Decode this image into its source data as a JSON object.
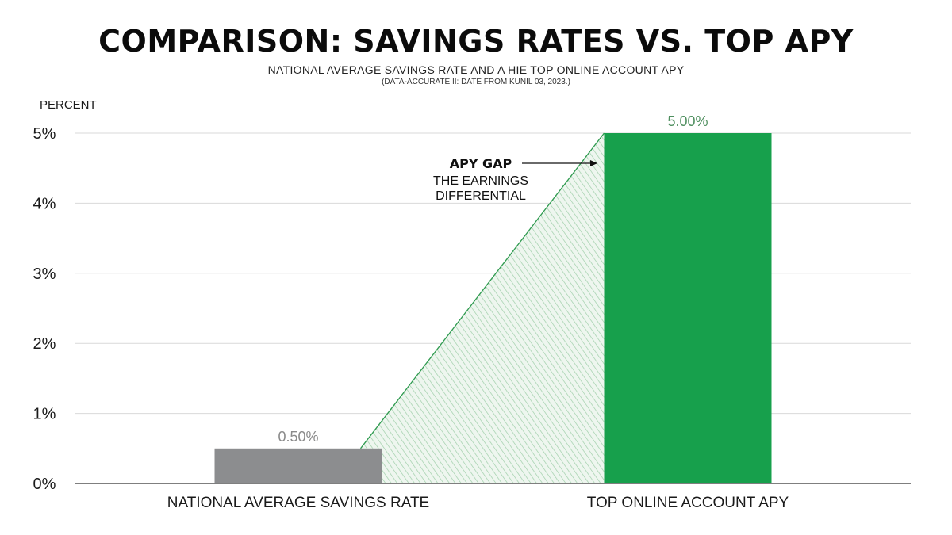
{
  "header": {
    "title": "COMPARISON: SAVINGS RATES VS. TOP APY",
    "subtitle": "NATIONAL AVERAGE SAVINGS RATE AND A HIE TOP ONLINE ACCOUNT APY",
    "note": "(DATA-ACCURATE II: DATE FROM KUNIL 03, 2023.)"
  },
  "chart_data": {
    "type": "bar",
    "title": "COMPARISON: SAVINGS RATES VS. TOP APY",
    "subtitle": "NATIONAL AVERAGE SAVINGS RATE AND A HIE TOP ONLINE ACCOUNT APY",
    "ylabel": "PERCENT",
    "xlabel": "",
    "categories": [
      "NATIONAL AVERAGE SAVINGS RATE",
      "TOP ONLINE ACCOUNT APY"
    ],
    "values": [
      0.5,
      5.0
    ],
    "data_labels": [
      "0.50%",
      "5.00%"
    ],
    "bar_colors": [
      "#8c8d8f",
      "#17a04c"
    ],
    "data_label_colors": [
      "#8a8a8a",
      "#4f8f5f"
    ],
    "ylim": [
      0,
      5
    ],
    "yticks": [
      0,
      1,
      2,
      3,
      4,
      5
    ],
    "ytick_labels": [
      "0%",
      "1%",
      "2%",
      "3%",
      "4%",
      "5%"
    ],
    "grid": true,
    "annotation": {
      "title": "APY GAP",
      "lines": [
        "THE EARNINGS",
        "DIFFERENTIAL"
      ],
      "arrow": "right"
    },
    "gap_fill_color": "#2e9a4f"
  }
}
